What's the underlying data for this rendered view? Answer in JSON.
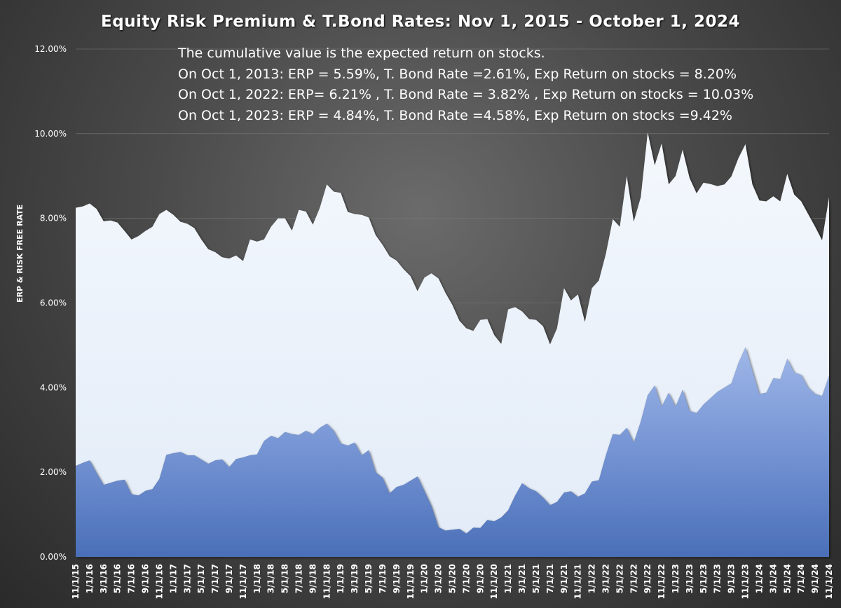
{
  "chart_data": {
    "type": "area",
    "stacked": true,
    "title": "Equity Risk Premium & T.Bond Rates: Nov 1, 2015 - October 1, 2024",
    "ylabel": "ERP & RISK FREE RATE",
    "xlabel": "",
    "ylim": [
      0,
      12
    ],
    "yticks": [
      "0.00%",
      "2.00%",
      "4.00%",
      "6.00%",
      "8.00%",
      "10.00%",
      "12.00%"
    ],
    "annotation": [
      "The cumulative value is the expected return on stocks.",
      "On Oct 1, 2013: ERP = 5.59%, T. Bond Rate =2.61%, Exp Return on stocks = 8.20%",
      "On Oct 1, 2022: ERP= 6.21% , T. Bond Rate = 3.82% , Exp Return on stocks = 10.03%",
      "On  Oct 1, 2023: ERP = 4.84%, T. Bond Rate =4.58%, Exp Return on stocks =9.42%"
    ],
    "x_tick_labels": [
      "11/1/15",
      "1/1/16",
      "3/1/16",
      "5/1/16",
      "7/1/16",
      "9/1/16",
      "11/1/16",
      "1/1/17",
      "3/1/17",
      "5/1/17",
      "7/1/17",
      "9/1/17",
      "11/1/17",
      "1/1/18",
      "3/1/18",
      "5/1/18",
      "7/1/18",
      "9/1/18",
      "11/1/18",
      "1/1/19",
      "3/1/19",
      "5/1/19",
      "7/1/19",
      "9/1/19",
      "11/1/19",
      "1/1/20",
      "3/1/20",
      "5/1/20",
      "7/1/20",
      "9/1/20",
      "11/1/20",
      "1/1/21",
      "3/1/21",
      "5/1/21",
      "7/1/21",
      "9/1/21",
      "11/1/21",
      "1/1/22",
      "3/1/22",
      "5/1/22",
      "7/1/22",
      "9/1/22",
      "11/1/22",
      "1/1/23",
      "3/1/23",
      "5/1/23",
      "7/1/23",
      "9/1/23",
      "11/1/23",
      "1/1/24",
      "3/1/24",
      "5/1/24",
      "7/1/24",
      "9/1/24",
      "11/1/24"
    ],
    "series": [
      {
        "name": "T. Bond Rate (Risk free rate)",
        "color": "#5b7fc7",
        "values": [
          2.15,
          2.22,
          2.28,
          1.98,
          1.7,
          1.75,
          1.8,
          1.82,
          1.48,
          1.45,
          1.56,
          1.6,
          1.84,
          2.41,
          2.45,
          2.48,
          2.4,
          2.4,
          2.3,
          2.2,
          2.28,
          2.3,
          2.12,
          2.31,
          2.35,
          2.4,
          2.42,
          2.74,
          2.86,
          2.8,
          2.95,
          2.9,
          2.88,
          2.98,
          2.9,
          3.05,
          3.15,
          2.98,
          2.68,
          2.63,
          2.7,
          2.4,
          2.52,
          2.0,
          1.87,
          1.5,
          1.65,
          1.7,
          1.8,
          1.9,
          1.55,
          1.2,
          0.7,
          0.62,
          0.64,
          0.66,
          0.55,
          0.69,
          0.68,
          0.87,
          0.84,
          0.93,
          1.1,
          1.45,
          1.74,
          1.62,
          1.55,
          1.4,
          1.22,
          1.3,
          1.52,
          1.55,
          1.42,
          1.5,
          1.78,
          1.81,
          2.4,
          2.9,
          2.88,
          3.05,
          2.7,
          3.2,
          3.82,
          4.05,
          3.55,
          3.88,
          3.55,
          3.95,
          3.45,
          3.4,
          3.6,
          3.75,
          3.9,
          4.0,
          4.1,
          4.58,
          4.95,
          4.4,
          3.85,
          3.88,
          4.22,
          4.2,
          4.68,
          4.36,
          4.3,
          4.0,
          3.85,
          3.8,
          4.28
        ]
      },
      {
        "name": "ERP",
        "color": "#eaf2fb",
        "values": [
          6.1,
          6.06,
          6.07,
          6.24,
          6.23,
          6.2,
          6.1,
          5.88,
          6.02,
          6.13,
          6.14,
          6.2,
          6.26,
          5.79,
          5.63,
          5.44,
          5.47,
          5.37,
          5.2,
          5.07,
          4.92,
          4.78,
          4.93,
          4.81,
          4.64,
          5.1,
          5.03,
          4.76,
          4.94,
          5.2,
          5.05,
          4.81,
          5.32,
          5.18,
          4.95,
          5.2,
          5.65,
          5.65,
          5.92,
          5.52,
          5.4,
          5.68,
          5.5,
          5.6,
          5.5,
          5.6,
          5.35,
          5.1,
          4.83,
          4.38,
          5.05,
          5.5,
          5.88,
          5.62,
          5.31,
          4.92,
          4.85,
          4.65,
          4.92,
          4.75,
          4.4,
          4.1,
          4.75,
          4.45,
          4.06,
          4.0,
          4.05,
          4.05,
          3.8,
          4.1,
          4.83,
          4.51,
          4.78,
          4.05,
          4.57,
          4.72,
          4.76,
          5.08,
          4.92,
          5.95,
          5.22,
          5.3,
          6.21,
          5.2,
          6.22,
          4.92,
          5.45,
          5.67,
          5.5,
          5.19,
          5.24,
          5.06,
          4.86,
          4.8,
          4.89,
          4.84,
          4.8,
          4.4,
          4.57,
          4.52,
          4.3,
          4.2,
          4.37,
          4.2,
          4.1,
          4.1,
          3.95,
          3.68,
          4.22
        ]
      }
    ]
  }
}
